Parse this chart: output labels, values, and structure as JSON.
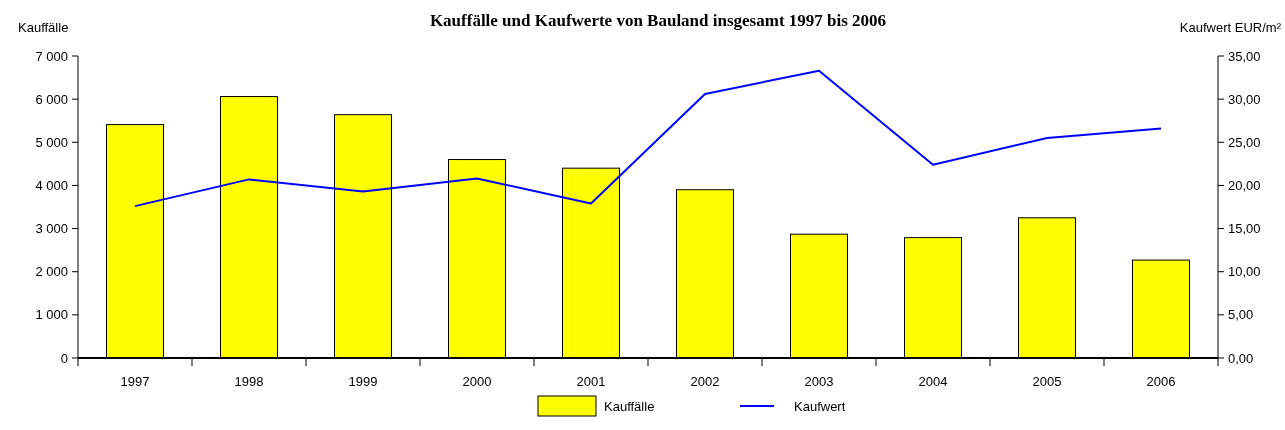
{
  "chart_data": {
    "type": "bar",
    "title": "Kauffälle und Kaufwerte von Bauland insgesamt 1997 bis 2006",
    "ylabel": "Kauffälle",
    "y2label": "Kaufwert EUR/m²",
    "categories": [
      "1997",
      "1998",
      "1999",
      "2000",
      "2001",
      "2002",
      "2003",
      "2004",
      "2005",
      "2006"
    ],
    "series": [
      {
        "name": "Kauffälle",
        "color": "#ffff00",
        "values": [
          5410,
          6060,
          5640,
          4600,
          4400,
          3900,
          2870,
          2790,
          3250,
          2270
        ]
      },
      {
        "name": "Kaufwert",
        "type": "line",
        "axis": "y2",
        "color": "#0000ff",
        "values": [
          17.6,
          20.7,
          19.3,
          20.8,
          17.9,
          30.6,
          33.3,
          22.4,
          25.5,
          26.6
        ]
      }
    ],
    "ylim": [
      0,
      7000
    ],
    "yticks": [
      {
        "value": 0,
        "label": "0"
      },
      {
        "value": 1000,
        "label": "1 000"
      },
      {
        "value": 2000,
        "label": "2 000"
      },
      {
        "value": 3000,
        "label": "3 000"
      },
      {
        "value": 4000,
        "label": "4 000"
      },
      {
        "value": 5000,
        "label": "5 000"
      },
      {
        "value": 6000,
        "label": "6 000"
      },
      {
        "value": 7000,
        "label": "7 000"
      }
    ],
    "y2lim": [
      0,
      35
    ],
    "y2ticks": [
      {
        "value": 0,
        "label": "0,00"
      },
      {
        "value": 5,
        "label": "5,00"
      },
      {
        "value": 10,
        "label": "10,00"
      },
      {
        "value": 15,
        "label": "15,00"
      },
      {
        "value": 20,
        "label": "20,00"
      },
      {
        "value": 25,
        "label": "25,00"
      },
      {
        "value": 30,
        "label": "30,00"
      },
      {
        "value": 35,
        "label": "35,00"
      }
    ],
    "grid": false,
    "legend": "bottom",
    "line_style": "solid",
    "marker": "none"
  }
}
